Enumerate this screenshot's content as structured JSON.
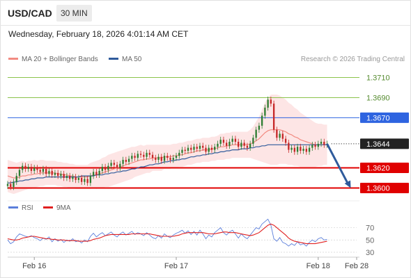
{
  "header": {
    "pair": "USD/CAD",
    "timeframe": "30 MIN",
    "timestamp": "Wednesday, February 18, 2026 4:01:14 AM CET",
    "credit": "Research © 2026 Trading Central"
  },
  "legend": {
    "ma20_label": "MA 20 + Bollinger Bands",
    "ma20_color": "#f28b82",
    "ma50_label": "MA 50",
    "ma50_color": "#2f5b9c"
  },
  "rsi_legend": {
    "rsi_label": "RSI",
    "rsi_color": "#5b7fdb",
    "ma_label": "9MA",
    "ma_color": "#e02020"
  },
  "colors": {
    "up": "#2e7d32",
    "down": "#c62828",
    "band_fill": "#fde0e0",
    "resistance_green": "#8bc34a",
    "pivot_blue": "#2e64e0",
    "support_red": "#e00000",
    "current_price_tag": "#222222",
    "forecast_arrow": "#2f5b9c"
  },
  "chart_data": {
    "type": "candlestick",
    "y_range": [
      1.3592,
      1.3718
    ],
    "x_range_bars": [
      0,
      118
    ],
    "x_ticks": [
      {
        "bar": 9,
        "label": "Feb 16"
      },
      {
        "bar": 57,
        "label": "Feb 17"
      },
      {
        "bar": 105,
        "label": "Feb 18"
      },
      {
        "bar": 118,
        "label": "Feb 28"
      }
    ],
    "levels": [
      {
        "price": 1.371,
        "label": "1.3710",
        "role": "resistance"
      },
      {
        "price": 1.369,
        "label": "1.3690",
        "role": "resistance"
      },
      {
        "price": 1.367,
        "label": "1.3670",
        "role": "pivot"
      },
      {
        "price": 1.3644,
        "label": "1.3644",
        "role": "current"
      },
      {
        "price": 1.362,
        "label": "1.3620",
        "role": "support"
      },
      {
        "price": 1.36,
        "label": "1.3600",
        "role": "support"
      }
    ],
    "candles_close": [
      1.3604,
      1.3601,
      1.3606,
      1.3612,
      1.3618,
      1.3622,
      1.3619,
      1.3621,
      1.3617,
      1.362,
      1.3618,
      1.3616,
      1.3619,
      1.3614,
      1.3617,
      1.3613,
      1.3615,
      1.3612,
      1.3614,
      1.361,
      1.3612,
      1.3609,
      1.3611,
      1.3608,
      1.361,
      1.3606,
      1.3609,
      1.3605,
      1.3612,
      1.3616,
      1.3613,
      1.3617,
      1.3621,
      1.3618,
      1.3622,
      1.3625,
      1.3623,
      1.362,
      1.3624,
      1.3628,
      1.3626,
      1.3629,
      1.3632,
      1.363,
      1.3634,
      1.3633,
      1.3631,
      1.3635,
      1.3633,
      1.363,
      1.3628,
      1.3631,
      1.3627,
      1.3632,
      1.363,
      1.3628,
      1.363,
      1.3632,
      1.3635,
      1.3638,
      1.3637,
      1.364,
      1.3638,
      1.3641,
      1.3639,
      1.3642,
      1.364,
      1.3636,
      1.364,
      1.3638,
      1.3641,
      1.3644,
      1.3648,
      1.3645,
      1.3642,
      1.3646,
      1.3649,
      1.3646,
      1.3641,
      1.3645,
      1.3642,
      1.364,
      1.3644,
      1.365,
      1.3658,
      1.3662,
      1.3672,
      1.368,
      1.3688,
      1.3684,
      1.3658,
      1.365,
      1.3654,
      1.3649,
      1.3645,
      1.3638,
      1.364,
      1.3636,
      1.3641,
      1.3637,
      1.3639,
      1.3636,
      1.364,
      1.3643,
      1.3641,
      1.3644,
      1.3646,
      1.3643,
      1.3644
    ],
    "ma20": [
      1.3612,
      1.3611,
      1.361,
      1.361,
      1.3611,
      1.3612,
      1.3612,
      1.3613,
      1.3613,
      1.3614,
      1.3614,
      1.3615,
      1.3615,
      1.3615,
      1.3615,
      1.3615,
      1.3615,
      1.3614,
      1.3614,
      1.3613,
      1.3613,
      1.3612,
      1.3612,
      1.3611,
      1.3611,
      1.3611,
      1.3611,
      1.3611,
      1.3612,
      1.3613,
      1.3613,
      1.3614,
      1.3615,
      1.3616,
      1.3617,
      1.3618,
      1.3619,
      1.362,
      1.3621,
      1.3622,
      1.3623,
      1.3624,
      1.3625,
      1.3626,
      1.3627,
      1.3628,
      1.3628,
      1.3629,
      1.3629,
      1.363,
      1.363,
      1.363,
      1.363,
      1.3631,
      1.3631,
      1.3631,
      1.3632,
      1.3632,
      1.3633,
      1.3633,
      1.3634,
      1.3635,
      1.3635,
      1.3636,
      1.3637,
      1.3637,
      1.3638,
      1.3638,
      1.3638,
      1.3639,
      1.3639,
      1.364,
      1.3641,
      1.3641,
      1.3642,
      1.3642,
      1.3643,
      1.3643,
      1.3643,
      1.3643,
      1.3643,
      1.3643,
      1.3644,
      1.3645,
      1.3647,
      1.3649,
      1.3652,
      1.3655,
      1.3657,
      1.3658,
      1.3658,
      1.3658,
      1.3658,
      1.3657,
      1.3656,
      1.3654,
      1.3653,
      1.3651,
      1.365,
      1.3648,
      1.3647,
      1.3646,
      1.3645,
      1.3644,
      1.3643,
      1.3643,
      1.3643,
      1.3643,
      1.3643
    ],
    "ma50": [
      1.3605,
      1.3605,
      1.3606,
      1.3606,
      1.3607,
      1.3607,
      1.3608,
      1.3608,
      1.3609,
      1.3609,
      1.361,
      1.361,
      1.361,
      1.3611,
      1.3611,
      1.3611,
      1.3611,
      1.3611,
      1.3611,
      1.3611,
      1.3611,
      1.3611,
      1.3611,
      1.3611,
      1.3611,
      1.3612,
      1.3612,
      1.3612,
      1.3612,
      1.3612,
      1.3613,
      1.3613,
      1.3613,
      1.3614,
      1.3614,
      1.3615,
      1.3615,
      1.3616,
      1.3616,
      1.3617,
      1.3617,
      1.3618,
      1.3619,
      1.3619,
      1.362,
      1.3621,
      1.3621,
      1.3622,
      1.3623,
      1.3623,
      1.3624,
      1.3624,
      1.3625,
      1.3626,
      1.3626,
      1.3627,
      1.3627,
      1.3628,
      1.3628,
      1.3629,
      1.3629,
      1.363,
      1.3631,
      1.3631,
      1.3632,
      1.3632,
      1.3633,
      1.3633,
      1.3634,
      1.3634,
      1.3635,
      1.3635,
      1.3636,
      1.3636,
      1.3637,
      1.3637,
      1.3638,
      1.3638,
      1.3638,
      1.3639,
      1.3639,
      1.3639,
      1.364,
      1.364,
      1.3641,
      1.3641,
      1.3642,
      1.3642,
      1.3643,
      1.3643,
      1.3643,
      1.3643,
      1.3643,
      1.3643,
      1.3643,
      1.3643,
      1.3643,
      1.3643,
      1.3643,
      1.3643,
      1.3643,
      1.3643,
      1.3643,
      1.3643,
      1.3643,
      1.3643,
      1.3643,
      1.3643,
      1.3643
    ],
    "band_width": [
      0.0016,
      0.0016,
      0.0016,
      0.0015,
      0.0015,
      0.0015,
      0.0014,
      0.0014,
      0.0014,
      0.0014,
      0.0013,
      0.0013,
      0.0013,
      0.0012,
      0.0012,
      0.0012,
      0.0012,
      0.0012,
      0.0012,
      0.0012,
      0.0012,
      0.0012,
      0.0012,
      0.0012,
      0.0012,
      0.0012,
      0.0012,
      0.0012,
      0.0013,
      0.0013,
      0.0014,
      0.0014,
      0.0015,
      0.0015,
      0.0016,
      0.0016,
      0.0016,
      0.0016,
      0.0016,
      0.0016,
      0.0016,
      0.0016,
      0.0016,
      0.0015,
      0.0015,
      0.0015,
      0.0014,
      0.0014,
      0.0014,
      0.0013,
      0.0013,
      0.0013,
      0.0013,
      0.0012,
      0.0012,
      0.0012,
      0.0012,
      0.0012,
      0.0012,
      0.0012,
      0.0012,
      0.0012,
      0.0012,
      0.0012,
      0.0012,
      0.0012,
      0.0012,
      0.0012,
      0.0012,
      0.0012,
      0.0012,
      0.0012,
      0.0013,
      0.0013,
      0.0013,
      0.0013,
      0.0013,
      0.0013,
      0.0013,
      0.0013,
      0.0013,
      0.0013,
      0.0014,
      0.0016,
      0.0019,
      0.0022,
      0.0026,
      0.003,
      0.0033,
      0.0035,
      0.0035,
      0.0035,
      0.0034,
      0.0033,
      0.0032,
      0.0031,
      0.003,
      0.0029,
      0.0028,
      0.0027,
      0.0026,
      0.0025,
      0.0024,
      0.0023,
      0.0022,
      0.0021,
      0.0021,
      0.002,
      0.002
    ],
    "forecast": {
      "from_bar": 108,
      "from_price": 1.3644,
      "to_bar": 116,
      "to_price": 1.36
    },
    "rsi": {
      "ticks": [
        {
          "value": 70,
          "label": "70"
        },
        {
          "value": 50,
          "label": "50"
        },
        {
          "value": 30,
          "label": "30"
        }
      ],
      "y_range": [
        22,
        90
      ],
      "values": [
        50,
        44,
        47,
        55,
        60,
        58,
        56,
        55,
        57,
        54,
        52,
        49,
        53,
        51,
        55,
        47,
        52,
        48,
        51,
        46,
        50,
        48,
        52,
        47,
        49,
        45,
        50,
        47,
        56,
        61,
        55,
        59,
        62,
        57,
        60,
        63,
        58,
        55,
        60,
        63,
        58,
        61,
        64,
        59,
        62,
        60,
        57,
        62,
        58,
        54,
        52,
        57,
        53,
        60,
        56,
        54,
        58,
        61,
        63,
        66,
        61,
        65,
        59,
        64,
        58,
        66,
        60,
        52,
        58,
        55,
        62,
        66,
        70,
        62,
        58,
        63,
        66,
        60,
        53,
        60,
        55,
        52,
        58,
        64,
        70,
        68,
        76,
        80,
        84,
        74,
        52,
        48,
        54,
        46,
        44,
        40,
        44,
        41,
        47,
        42,
        44,
        40,
        46,
        50,
        47,
        52,
        54,
        50,
        51
      ],
      "ma": [
        52,
        51,
        50,
        50,
        51,
        53,
        54,
        55,
        56,
        56,
        55,
        54,
        53,
        52,
        52,
        51,
        51,
        50,
        50,
        50,
        49,
        49,
        49,
        49,
        48,
        48,
        48,
        48,
        49,
        51,
        52,
        53,
        55,
        57,
        58,
        59,
        59,
        59,
        59,
        59,
        59,
        59,
        60,
        60,
        60,
        60,
        60,
        60,
        60,
        59,
        58,
        57,
        56,
        56,
        56,
        56,
        56,
        57,
        58,
        60,
        61,
        62,
        62,
        62,
        62,
        62,
        62,
        61,
        60,
        60,
        60,
        61,
        62,
        63,
        63,
        62,
        62,
        62,
        61,
        60,
        59,
        58,
        57,
        58,
        60,
        62,
        66,
        70,
        74,
        76,
        74,
        70,
        66,
        62,
        58,
        53,
        50,
        48,
        47,
        46,
        45,
        44,
        44,
        44,
        44,
        45,
        46,
        47,
        48
      ]
    }
  }
}
